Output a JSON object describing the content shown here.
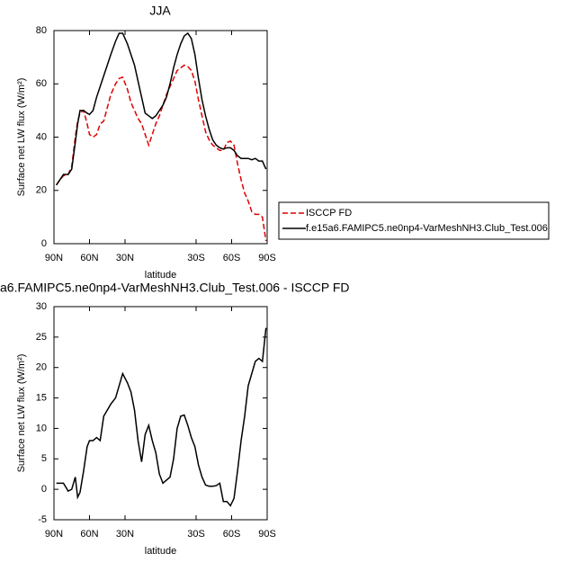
{
  "chart_data": [
    {
      "type": "line",
      "title": "JJA",
      "xlabel": "latitude",
      "ylabel": "Surface net LW flux (W/m²)",
      "x": [
        88,
        85,
        82,
        78,
        75,
        72,
        70,
        68,
        65,
        62,
        60,
        57,
        54,
        51,
        48,
        45,
        42,
        38,
        35,
        32,
        28,
        25,
        22,
        19,
        16,
        13,
        10,
        7,
        4,
        1,
        -2,
        -5,
        -8,
        -11,
        -14,
        -17,
        -20,
        -23,
        -26,
        -29,
        -32,
        -35,
        -38,
        -41,
        -44,
        -47,
        -50,
        -53,
        -56,
        -59,
        -62,
        -65,
        -68,
        -71,
        -74,
        -77,
        -80,
        -83,
        -86,
        -89
      ],
      "series": [
        {
          "name": "ISCCP FD",
          "color": "#e00000",
          "line_style": "dashed",
          "values": [
            22,
            24,
            25.5,
            26,
            29,
            40,
            46,
            49,
            50,
            45,
            41,
            40,
            41,
            45,
            46,
            51,
            56,
            60,
            62,
            62.5,
            58,
            53,
            50,
            47,
            45,
            41,
            37,
            41,
            45,
            48,
            52,
            56,
            59,
            62,
            65,
            66,
            67,
            66.5,
            65,
            61,
            54,
            48,
            42,
            39,
            37,
            36,
            35,
            35,
            38,
            38.5,
            37,
            30,
            24,
            19,
            16,
            12,
            11,
            11,
            10,
            1
          ]
        },
        {
          "name": "f.e15a6.FAMIPC5.ne0np4-VarMeshNH3.Club_Test.006",
          "color": "#000000",
          "line_style": "solid",
          "values": [
            22,
            24,
            26,
            26,
            28,
            38,
            45,
            50,
            50,
            49,
            48.5,
            50,
            55,
            59,
            63,
            67,
            71,
            76,
            79,
            79,
            75,
            71,
            67,
            61,
            55,
            49,
            48,
            47,
            48,
            50,
            52,
            55,
            60,
            66,
            71,
            75,
            78,
            79,
            77,
            71,
            62,
            54,
            48,
            43,
            39,
            37,
            36,
            35.5,
            36,
            36,
            35,
            33,
            32,
            32,
            32,
            31.5,
            32,
            31,
            31,
            28
          ]
        }
      ],
      "xlim": [
        90,
        -90
      ],
      "xticks": [
        {
          "value": 90,
          "label": "90N"
        },
        {
          "value": 60,
          "label": "60N"
        },
        {
          "value": 30,
          "label": "30N"
        },
        {
          "value": -30,
          "label": "30S"
        },
        {
          "value": -60,
          "label": "60S"
        },
        {
          "value": -90,
          "label": "90S"
        }
      ],
      "ylim": [
        0,
        80
      ],
      "yticks": [
        0,
        20,
        40,
        60,
        80
      ],
      "legend": "right"
    },
    {
      "type": "line",
      "title": "a6.FAMIPC5.ne0np4-VarMeshNH3.Club_Test.006 - ISCCP FD",
      "xlabel": "latitude",
      "ylabel": "Surface net LW flux (W/m²)",
      "x": [
        88,
        85,
        82,
        78,
        75,
        72,
        70,
        68,
        65,
        62,
        60,
        57,
        54,
        51,
        48,
        45,
        42,
        38,
        35,
        32,
        28,
        25,
        22,
        19,
        16,
        13,
        10,
        7,
        4,
        1,
        -2,
        -5,
        -8,
        -11,
        -14,
        -17,
        -20,
        -23,
        -26,
        -29,
        -32,
        -35,
        -38,
        -41,
        -44,
        -47,
        -50,
        -53,
        -56,
        -59,
        -62,
        -65,
        -68,
        -71,
        -74,
        -77,
        -80,
        -83,
        -86,
        -89
      ],
      "values": [
        1,
        1,
        1,
        -0.3,
        0,
        2,
        -1.3,
        -0.5,
        3,
        7,
        8,
        8,
        8.5,
        8,
        12,
        13,
        14,
        15,
        17,
        19,
        17.5,
        16,
        13,
        8,
        4.5,
        9,
        10.5,
        8,
        6,
        2.5,
        1,
        1.5,
        2,
        5,
        10,
        12,
        12.2,
        10.5,
        8.5,
        7,
        4,
        2,
        0.7,
        0.5,
        0.5,
        0.6,
        1,
        -2,
        -2,
        -2.7,
        -1.5,
        3,
        8,
        12,
        17,
        19,
        21,
        21.5,
        21,
        26.5
      ],
      "color": "#000000",
      "xlim": [
        90,
        -90
      ],
      "xticks": [
        {
          "value": 90,
          "label": "90N"
        },
        {
          "value": 60,
          "label": "60N"
        },
        {
          "value": 30,
          "label": "30N"
        },
        {
          "value": -30,
          "label": "30S"
        },
        {
          "value": -60,
          "label": "60S"
        },
        {
          "value": -90,
          "label": "90S"
        }
      ],
      "ylim": [
        -5,
        30
      ],
      "yticks": [
        -5,
        0,
        5,
        10,
        15,
        20,
        25,
        30
      ]
    }
  ]
}
